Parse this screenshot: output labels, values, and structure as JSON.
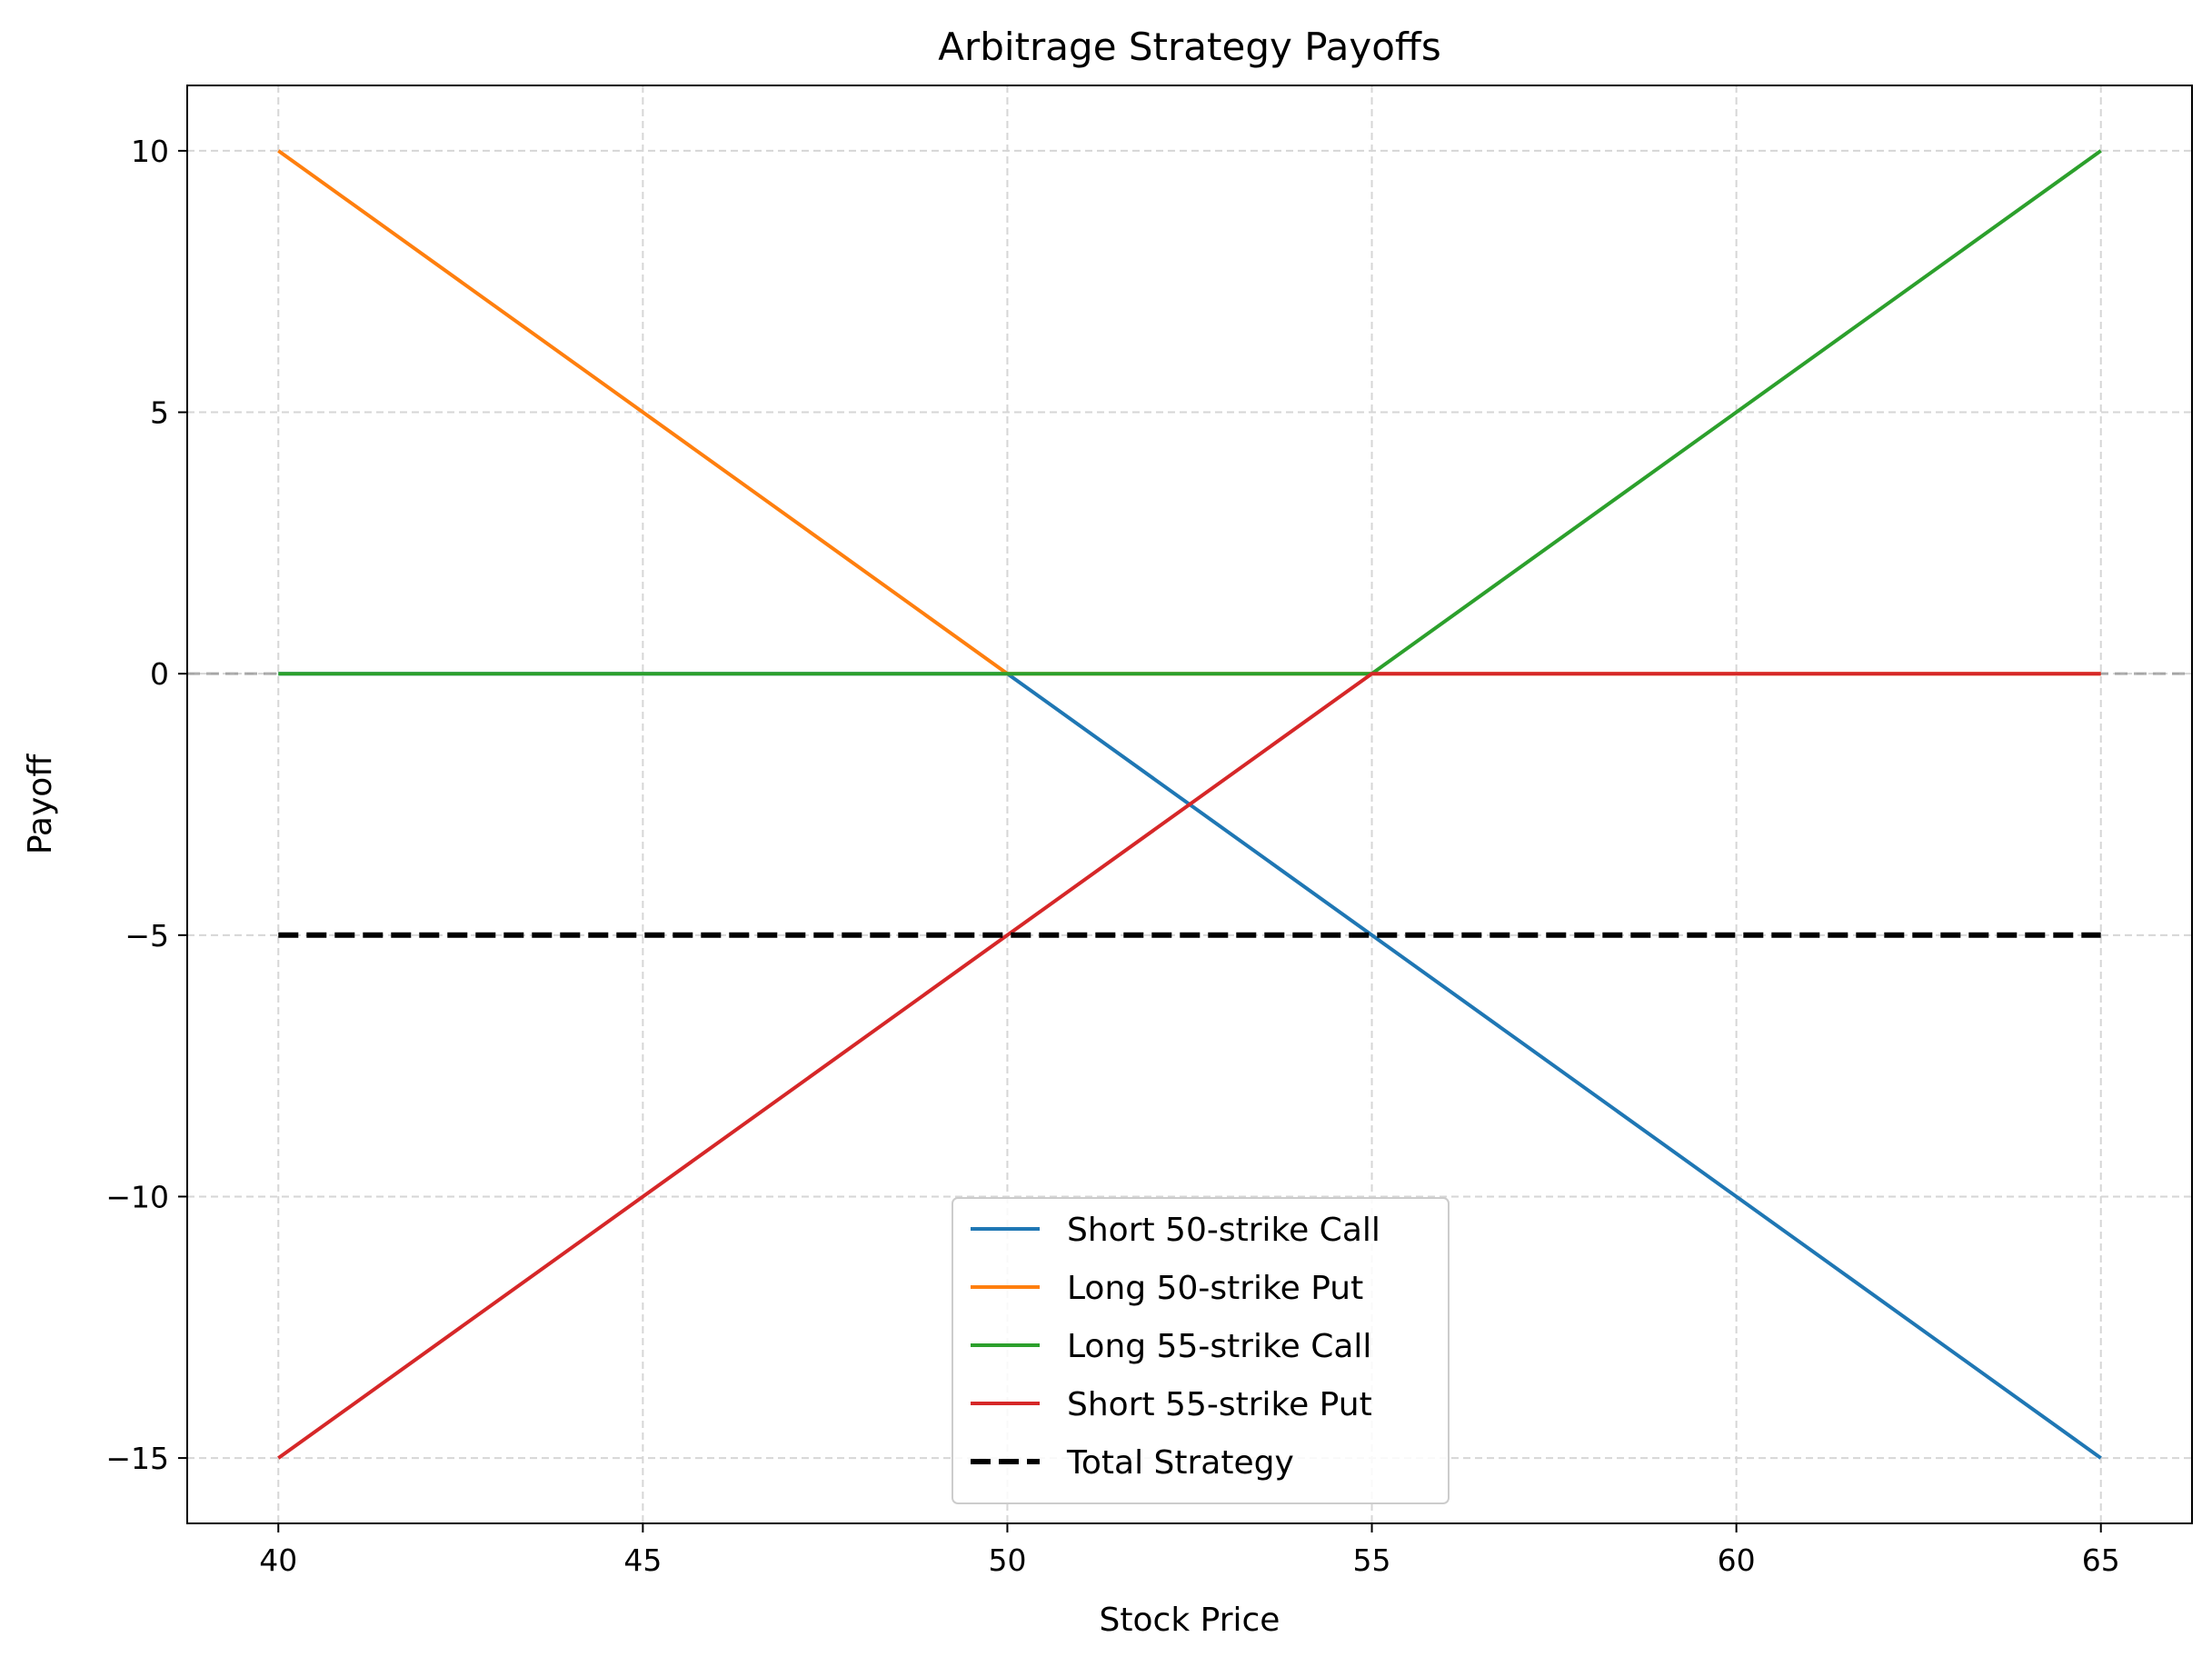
{
  "chart_data": {
    "type": "line",
    "title": "Arbitrage Strategy Payoffs",
    "xlabel": "Stock Price",
    "ylabel": "Payoff",
    "xlim": [
      38.75,
      66.25
    ],
    "ylim": [
      -16.25,
      11.25
    ],
    "xticks": [
      40,
      45,
      50,
      55,
      60,
      65
    ],
    "yticks": [
      10,
      5,
      0,
      -5,
      -10,
      -15
    ],
    "ytick_labels": [
      "10",
      "5",
      "0",
      "−5",
      "−10",
      "−15"
    ],
    "grid": true,
    "reference_line": {
      "y": 0,
      "color": "#999999"
    },
    "legend_placement": "lower-center",
    "series": [
      {
        "name": "Short 50-strike Call",
        "color": "#1f77b4",
        "dashed": false,
        "x": [
          40,
          50,
          55,
          65
        ],
        "y": [
          0,
          0,
          -5,
          -15
        ]
      },
      {
        "name": "Long 50-strike Put",
        "color": "#ff7f0e",
        "dashed": false,
        "x": [
          40,
          45,
          50,
          55,
          65
        ],
        "y": [
          10,
          5,
          0,
          0,
          0
        ]
      },
      {
        "name": "Long 55-strike Call",
        "color": "#2ca02c",
        "dashed": false,
        "x": [
          40,
          50,
          55,
          60,
          65
        ],
        "y": [
          0,
          0,
          0,
          5,
          10
        ]
      },
      {
        "name": "Short 55-strike Put",
        "color": "#d62728",
        "dashed": false,
        "x": [
          40,
          45,
          50,
          55,
          65
        ],
        "y": [
          -15,
          -10,
          -5,
          0,
          0
        ]
      },
      {
        "name": "Total Strategy",
        "color": "#000000",
        "dashed": true,
        "x": [
          40,
          65
        ],
        "y": [
          -5,
          -5
        ]
      }
    ]
  }
}
